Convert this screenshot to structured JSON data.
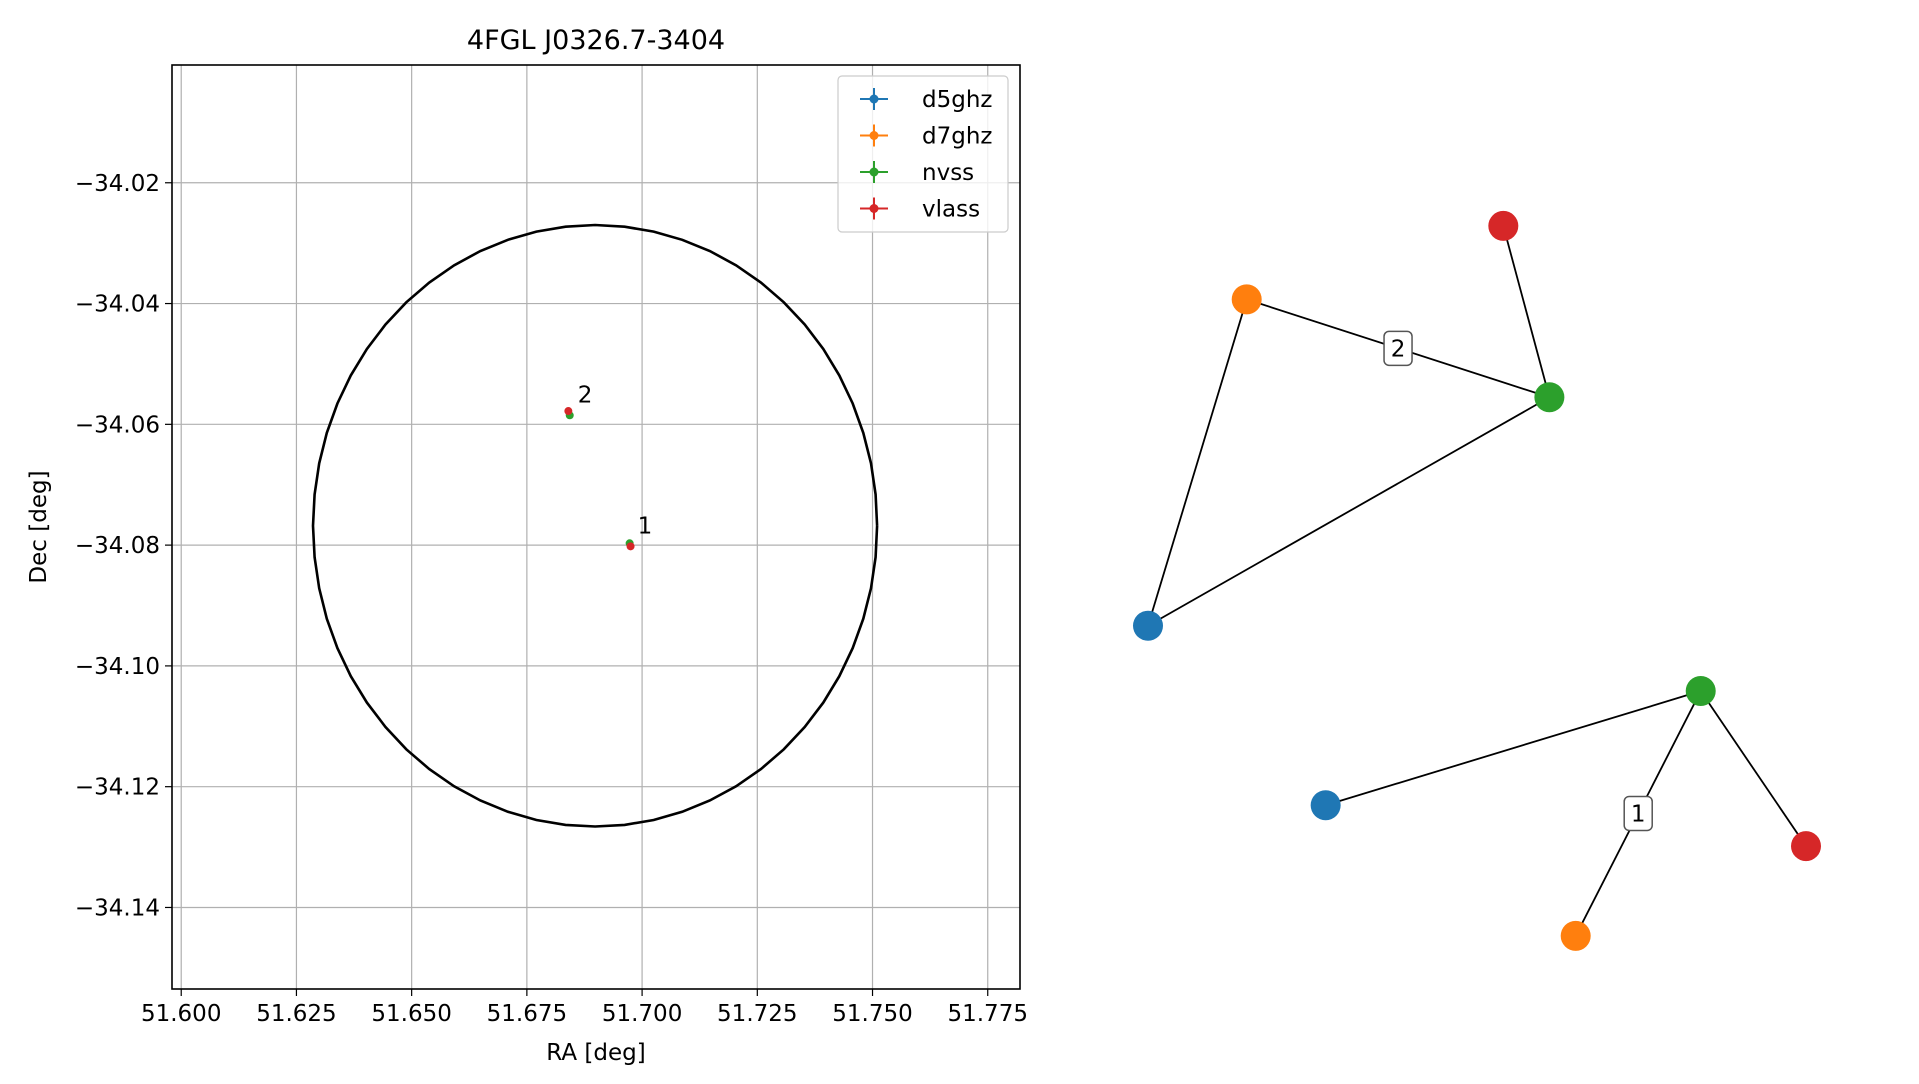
{
  "chart_data": [
    {
      "type": "scatter",
      "title": "4FGL J0326.7-3404",
      "xlabel": "RA [deg]",
      "ylabel": "Dec [deg]",
      "xlim": [
        51.598,
        51.782
      ],
      "ylim": [
        -34.1535,
        -34.0005
      ],
      "xticks": [
        51.6,
        51.625,
        51.65,
        51.675,
        51.7,
        51.725,
        51.75,
        51.775
      ],
      "xtick_labels": [
        "51.600",
        "51.625",
        "51.650",
        "51.675",
        "51.700",
        "51.725",
        "51.750",
        "51.775"
      ],
      "yticks": [
        -34.02,
        -34.04,
        -34.06,
        -34.08,
        -34.1,
        -34.12,
        -34.14
      ],
      "ytick_labels": [
        "−34.02",
        "−34.04",
        "−34.06",
        "−34.08",
        "−34.10",
        "−34.12",
        "−34.14"
      ],
      "grid": true,
      "legend_position": "top-right",
      "ellipse": {
        "ra": 51.6898,
        "dec": -34.0768,
        "semi_ra": 0.0612,
        "semi_dec": 0.0498
      },
      "series": [
        {
          "name": "d5ghz",
          "color": "#1f77b4",
          "points": []
        },
        {
          "name": "d7ghz",
          "color": "#ff7f0e",
          "points": []
        },
        {
          "name": "nvss",
          "color": "#2ca02c",
          "points": [
            {
              "x": 51.6843,
              "y": -34.0585
            },
            {
              "x": 51.6973,
              "y": -34.0797
            }
          ]
        },
        {
          "name": "vlass",
          "color": "#d62728",
          "points": [
            {
              "x": 51.684,
              "y": -34.0578
            },
            {
              "x": 51.6975,
              "y": -34.0802
            }
          ]
        }
      ],
      "annotations": [
        {
          "text": "2",
          "x": 51.6843,
          "y": -34.058
        },
        {
          "text": "1",
          "x": 51.6973,
          "y": -34.0797
        }
      ]
    },
    {
      "type": "network",
      "groups": [
        {
          "label": "2",
          "nodes": [
            {
              "name": "d5ghz",
              "color": "#1f77b4",
              "x": 0.0,
              "y": 0.61
            },
            {
              "name": "d7ghz",
              "color": "#ff7f0e",
              "x": 0.15,
              "y": 0.21
            },
            {
              "name": "nvss",
              "color": "#2ca02c",
              "x": 0.61,
              "y": 0.33
            },
            {
              "name": "vlass",
              "color": "#d62728",
              "x": 0.54,
              "y": 0.12
            }
          ],
          "edges": [
            [
              "d5ghz",
              "d7ghz"
            ],
            [
              "d5ghz",
              "nvss"
            ],
            [
              "d7ghz",
              "nvss"
            ],
            [
              "nvss",
              "vlass"
            ]
          ],
          "label_edge": [
            "d7ghz",
            "nvss"
          ]
        },
        {
          "label": "1",
          "nodes": [
            {
              "name": "d5ghz",
              "color": "#1f77b4",
              "x": 0.27,
              "y": 0.83
            },
            {
              "name": "d7ghz",
              "color": "#ff7f0e",
              "x": 0.65,
              "y": 0.99
            },
            {
              "name": "nvss",
              "color": "#2ca02c",
              "x": 0.84,
              "y": 0.69
            },
            {
              "name": "vlass",
              "color": "#d62728",
              "x": 1.0,
              "y": 0.88
            }
          ],
          "edges": [
            [
              "d5ghz",
              "nvss"
            ],
            [
              "d7ghz",
              "nvss"
            ],
            [
              "nvss",
              "vlass"
            ]
          ],
          "label_edge": [
            "d7ghz",
            "nvss"
          ]
        }
      ]
    }
  ]
}
